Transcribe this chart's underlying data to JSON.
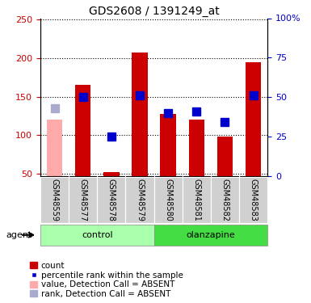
{
  "title": "GDS2608 / 1391249_at",
  "samples": [
    "GSM48559",
    "GSM48577",
    "GSM48578",
    "GSM48579",
    "GSM48580",
    "GSM48581",
    "GSM48582",
    "GSM48583"
  ],
  "bar_values": [
    120,
    165,
    52,
    207,
    127,
    120,
    98,
    195
  ],
  "rank_values": [
    43,
    50,
    25,
    51,
    40,
    41,
    34,
    51
  ],
  "absent_bars": [
    0
  ],
  "absent_ranks": [
    0
  ],
  "bar_color_present": "#cc0000",
  "bar_color_absent": "#ffaaaa",
  "rank_color_present": "#0000cc",
  "rank_color_absent": "#aaaacc",
  "ylim_left": [
    47,
    252
  ],
  "ylim_right": [
    0,
    100
  ],
  "yticks_left": [
    50,
    100,
    150,
    200,
    250
  ],
  "yticks_right": [
    0,
    25,
    50,
    75,
    100
  ],
  "ytick_labels_right": [
    "0",
    "25",
    "50",
    "75",
    "100%"
  ],
  "groups": [
    {
      "label": "control",
      "start": 0,
      "end": 3,
      "color": "#aaffaa"
    },
    {
      "label": "olanzapine",
      "start": 4,
      "end": 7,
      "color": "#44dd44"
    }
  ],
  "agent_label": "agent",
  "bar_width": 0.55,
  "rank_marker_size": 7,
  "title_fontsize": 10,
  "tick_fontsize": 8,
  "label_fontsize": 7,
  "legend_fontsize": 7.5
}
